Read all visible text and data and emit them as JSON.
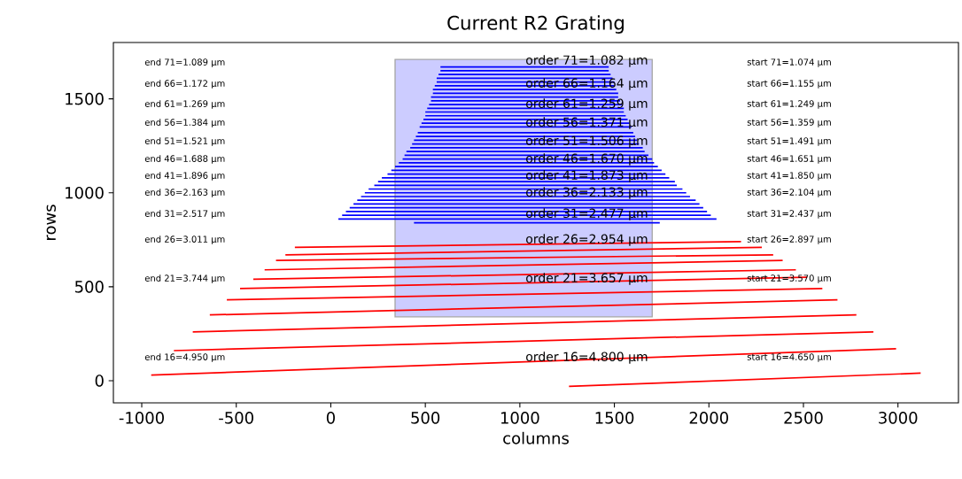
{
  "chart_data": {
    "type": "line",
    "title": "Current R2 Grating",
    "xlabel": "columns",
    "ylabel": "rows",
    "xlim": [
      -1150,
      3320
    ],
    "ylim": [
      -118,
      1800
    ],
    "xticks": [
      -1000,
      -500,
      0,
      500,
      1000,
      1500,
      2000,
      2500,
      3000
    ],
    "yticks": [
      0,
      500,
      1000,
      1500
    ],
    "series": [
      {
        "color": "#ccccff",
        "x": [
          340,
          1700
        ],
        "values": [
          null,
          null
        ],
        "lower": [
          340,
          340
        ],
        "upper": [
          1710,
          1710
        ]
      },
      {
        "color": "#ff0000",
        "x": [
          -190,
          2170
        ],
        "values": [
          710,
          740
        ]
      },
      {
        "color": "#ff0000",
        "x": [
          -240,
          2280
        ],
        "values": [
          670,
          710
        ]
      },
      {
        "color": "#ff0000",
        "x": [
          -290,
          2340
        ],
        "values": [
          640,
          670
        ]
      },
      {
        "color": "#ff0000",
        "x": [
          -350,
          2390
        ],
        "values": [
          590,
          640
        ]
      },
      {
        "color": "#ff0000",
        "x": [
          -410,
          2460
        ],
        "values": [
          540,
          590
        ]
      },
      {
        "color": "#ff0000",
        "x": [
          -480,
          2520
        ],
        "values": [
          490,
          550
        ]
      },
      {
        "color": "#ff0000",
        "x": [
          -550,
          2600
        ],
        "values": [
          430,
          490
        ]
      },
      {
        "color": "#ff0000",
        "x": [
          -640,
          2680
        ],
        "values": [
          350,
          430
        ]
      },
      {
        "color": "#ff0000",
        "x": [
          -730,
          2780
        ],
        "values": [
          260,
          350
        ]
      },
      {
        "color": "#ff0000",
        "x": [
          -830,
          2870
        ],
        "values": [
          160,
          260
        ]
      },
      {
        "color": "#ff0000",
        "x": [
          -950,
          2990
        ],
        "values": [
          30,
          170
        ]
      },
      {
        "color": "#ff0000",
        "x": [
          1260,
          3120
        ],
        "values": [
          -30,
          40
        ]
      },
      {
        "color": "#0000ff",
        "x": [
          580,
          1470
        ],
        "values": [
          1670,
          1670
        ]
      },
      {
        "color": "#0000ff",
        "x": [
          580,
          1470
        ],
        "values": [
          1650,
          1650
        ]
      },
      {
        "color": "#0000ff",
        "x": [
          570,
          1480
        ],
        "values": [
          1630,
          1630
        ]
      },
      {
        "color": "#0000ff",
        "x": [
          560,
          1490
        ],
        "values": [
          1610,
          1610
        ]
      },
      {
        "color": "#0000ff",
        "x": [
          560,
          1500
        ],
        "values": [
          1590,
          1590
        ]
      },
      {
        "color": "#0000ff",
        "x": [
          550,
          1500
        ],
        "values": [
          1570,
          1570
        ]
      },
      {
        "color": "#0000ff",
        "x": [
          540,
          1510
        ],
        "values": [
          1550,
          1550
        ]
      },
      {
        "color": "#0000ff",
        "x": [
          540,
          1520
        ],
        "values": [
          1530,
          1530
        ]
      },
      {
        "color": "#0000ff",
        "x": [
          530,
          1520
        ],
        "values": [
          1510,
          1510
        ]
      },
      {
        "color": "#0000ff",
        "x": [
          530,
          1530
        ],
        "values": [
          1490,
          1490
        ]
      },
      {
        "color": "#0000ff",
        "x": [
          520,
          1540
        ],
        "values": [
          1470,
          1470
        ]
      },
      {
        "color": "#0000ff",
        "x": [
          510,
          1550
        ],
        "values": [
          1450,
          1450
        ]
      },
      {
        "color": "#0000ff",
        "x": [
          500,
          1550
        ],
        "values": [
          1430,
          1430
        ]
      },
      {
        "color": "#0000ff",
        "x": [
          500,
          1560
        ],
        "values": [
          1410,
          1410
        ]
      },
      {
        "color": "#0000ff",
        "x": [
          490,
          1570
        ],
        "values": [
          1390,
          1390
        ]
      },
      {
        "color": "#0000ff",
        "x": [
          480,
          1580
        ],
        "values": [
          1370,
          1370
        ]
      },
      {
        "color": "#0000ff",
        "x": [
          470,
          1590
        ],
        "values": [
          1350,
          1350
        ]
      },
      {
        "color": "#0000ff",
        "x": [
          460,
          1600
        ],
        "values": [
          1320,
          1320
        ]
      },
      {
        "color": "#0000ff",
        "x": [
          450,
          1610
        ],
        "values": [
          1300,
          1300
        ]
      },
      {
        "color": "#0000ff",
        "x": [
          440,
          1620
        ],
        "values": [
          1280,
          1280
        ]
      },
      {
        "color": "#0000ff",
        "x": [
          430,
          1630
        ],
        "values": [
          1260,
          1260
        ]
      },
      {
        "color": "#0000ff",
        "x": [
          420,
          1650
        ],
        "values": [
          1240,
          1240
        ]
      },
      {
        "color": "#0000ff",
        "x": [
          400,
          1660
        ],
        "values": [
          1220,
          1220
        ]
      },
      {
        "color": "#0000ff",
        "x": [
          390,
          1680
        ],
        "values": [
          1200,
          1200
        ]
      },
      {
        "color": "#0000ff",
        "x": [
          380,
          1700
        ],
        "values": [
          1180,
          1180
        ]
      },
      {
        "color": "#0000ff",
        "x": [
          360,
          1710
        ],
        "values": [
          1160,
          1160
        ]
      },
      {
        "color": "#0000ff",
        "x": [
          340,
          1730
        ],
        "values": [
          1140,
          1140
        ]
      },
      {
        "color": "#0000ff",
        "x": [
          320,
          1750
        ],
        "values": [
          1120,
          1120
        ]
      },
      {
        "color": "#0000ff",
        "x": [
          300,
          1770
        ],
        "values": [
          1100,
          1100
        ]
      },
      {
        "color": "#0000ff",
        "x": [
          270,
          1790
        ],
        "values": [
          1080,
          1080
        ]
      },
      {
        "color": "#0000ff",
        "x": [
          250,
          1820
        ],
        "values": [
          1060,
          1060
        ]
      },
      {
        "color": "#0000ff",
        "x": [
          230,
          1830
        ],
        "values": [
          1040,
          1040
        ]
      },
      {
        "color": "#0000ff",
        "x": [
          200,
          1860
        ],
        "values": [
          1020,
          1020
        ]
      },
      {
        "color": "#0000ff",
        "x": [
          180,
          1880
        ],
        "values": [
          1000,
          1000
        ]
      },
      {
        "color": "#0000ff",
        "x": [
          160,
          1900
        ],
        "values": [
          980,
          980
        ]
      },
      {
        "color": "#0000ff",
        "x": [
          140,
          1930
        ],
        "values": [
          960,
          960
        ]
      },
      {
        "color": "#0000ff",
        "x": [
          120,
          1950
        ],
        "values": [
          940,
          940
        ]
      },
      {
        "color": "#0000ff",
        "x": [
          100,
          1970
        ],
        "values": [
          920,
          920
        ]
      },
      {
        "color": "#0000ff",
        "x": [
          80,
          1990
        ],
        "values": [
          900,
          900
        ]
      },
      {
        "color": "#0000ff",
        "x": [
          60,
          2010
        ],
        "values": [
          880,
          880
        ]
      },
      {
        "color": "#0000ff",
        "x": [
          40,
          2040
        ],
        "values": [
          860,
          860
        ]
      },
      {
        "color": "#0000ff",
        "x": [
          440,
          1740
        ],
        "values": [
          840,
          840
        ]
      }
    ],
    "annotations": [
      "end 71=1.089 μm",
      "order 71=1.082 μm",
      "start 71=1.074 μm",
      "end 66=1.172 μm",
      "order 66=1.164 μm",
      "start 66=1.155 μm",
      "end 61=1.269 μm",
      "order 61=1.259 μm",
      "start 61=1.249 μm",
      "end 56=1.384 μm",
      "order 56=1.371 μm",
      "start 56=1.359 μm",
      "end 51=1.521 μm",
      "order 51=1.506 μm",
      "start 51=1.491 μm",
      "end 46=1.688 μm",
      "order 46=1.670 μm",
      "start 46=1.651 μm",
      "end 41=1.896 μm",
      "order 41=1.873 μm",
      "start 41=1.850 μm",
      "end 36=2.163 μm",
      "order 36=2.133 μm",
      "start 36=2.104 μm",
      "end 31=2.517 μm",
      "order 31=2.477 μm",
      "start 31=2.437 μm",
      "end 26=3.011 μm",
      "order 26=2.954 μm",
      "start 26=2.897 μm",
      "end 21=3.744 μm",
      "order 21=3.657 μm",
      "start 21=3.570 μm",
      "end 16=4.950 μm",
      "order 16=4.800 μm",
      "start 16=4.650 μm"
    ]
  }
}
